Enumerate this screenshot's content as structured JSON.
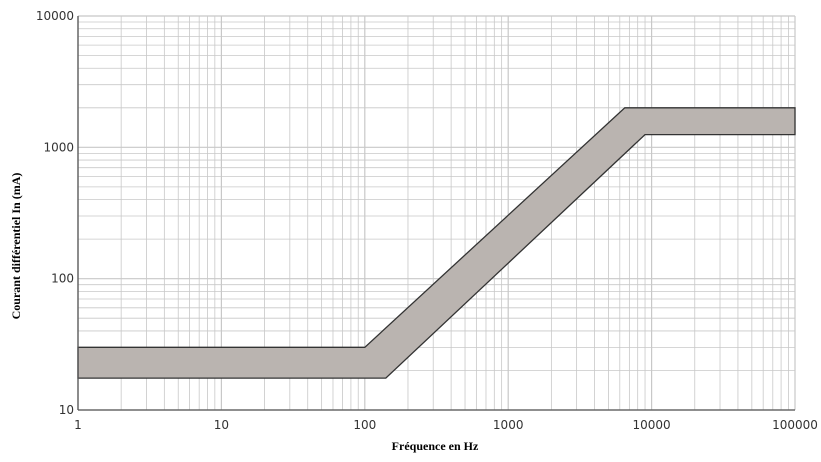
{
  "chart_data": {
    "type": "area",
    "xlabel": "Fréquence en Hz",
    "ylabel": "Courant différentiel In (mA)",
    "x_scale": "log",
    "y_scale": "log",
    "xlim": [
      1,
      100000
    ],
    "ylim": [
      10,
      10000
    ],
    "grid": true,
    "x_ticks": [
      {
        "value": 1,
        "label": "1"
      },
      {
        "value": 10,
        "label": "10"
      },
      {
        "value": 100,
        "label": "100"
      },
      {
        "value": 1000,
        "label": "1000"
      },
      {
        "value": 10000,
        "label": "10000"
      },
      {
        "value": 100000,
        "label": "100000"
      }
    ],
    "y_ticks": [
      {
        "value": 10,
        "label": "10"
      },
      {
        "value": 100,
        "label": "100"
      },
      {
        "value": 1000,
        "label": "1000"
      },
      {
        "value": 10000,
        "label": "10000"
      }
    ],
    "series": [
      {
        "upper": [
          [
            1,
            30
          ],
          [
            100,
            30
          ],
          [
            6500,
            2000
          ],
          [
            100000,
            2000
          ]
        ],
        "lower": [
          [
            1,
            17.5
          ],
          [
            140,
            17.5
          ],
          [
            9000,
            1250
          ],
          [
            100000,
            1250
          ]
        ]
      }
    ],
    "colors": {
      "band_fill": "#bab4b0",
      "band_stroke": "#333333",
      "grid": "#c8c8c8",
      "axis": "#555555"
    }
  }
}
